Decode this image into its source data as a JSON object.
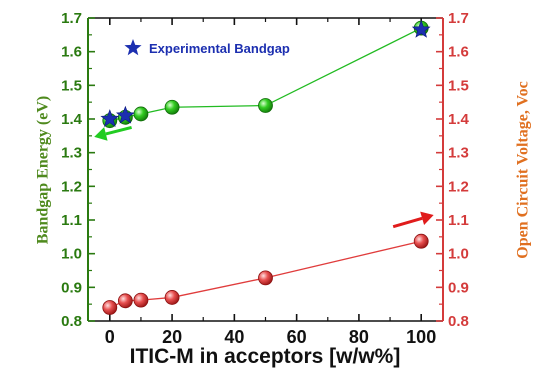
{
  "chart_data": {
    "type": "scatter",
    "xlabel": "ITIC-M in acceptors [w/w%]",
    "ylabel_left": "Bandgap Energy (eV)",
    "ylabel_right": "Open Circuit Voltage, Voc",
    "x_ticks": [
      "0",
      "20",
      "40",
      "60",
      "80",
      "100"
    ],
    "y_ticks_left": [
      "0.8",
      "0.9",
      "1.0",
      "1.1",
      "1.2",
      "1.3",
      "1.4",
      "1.5",
      "1.6",
      "1.7"
    ],
    "y_ticks_right": [
      "0.8",
      "0.9",
      "1.0",
      "1.1",
      "1.2",
      "1.3",
      "1.4",
      "1.5",
      "1.6",
      "1.7"
    ],
    "xlim": [
      -7,
      107
    ],
    "ylim": [
      0.8,
      1.7
    ],
    "grid": false,
    "legend": {
      "placement": "top-left",
      "label": "Experimental Bandgap"
    },
    "series": [
      {
        "axis": "left",
        "style": "line+marker",
        "color": "#22bb22",
        "points": [
          {
            "x": 0,
            "y": 1.395
          },
          {
            "x": 5,
            "y": 1.405
          },
          {
            "x": 10,
            "y": 1.415
          },
          {
            "x": 20,
            "y": 1.435
          },
          {
            "x": 50,
            "y": 1.44
          },
          {
            "x": 100,
            "y": 1.67
          }
        ]
      },
      {
        "axis": "right",
        "style": "line+marker",
        "color": "#e03c3c",
        "points": [
          {
            "x": 0,
            "y": 0.84
          },
          {
            "x": 5,
            "y": 0.86
          },
          {
            "x": 10,
            "y": 0.862
          },
          {
            "x": 20,
            "y": 0.87
          },
          {
            "x": 50,
            "y": 0.928
          },
          {
            "x": 100,
            "y": 1.037
          }
        ]
      },
      {
        "name": "Experimental Bandgap",
        "axis": "left",
        "style": "star",
        "color": "#1c2fb0",
        "points": [
          {
            "x": 0,
            "y": 1.4
          },
          {
            "x": 5,
            "y": 1.41
          },
          {
            "x": 100,
            "y": 1.665
          }
        ]
      }
    ],
    "annotations": [
      {
        "kind": "arrow",
        "color": "#22cc22",
        "direction": "left",
        "from": {
          "x": 7,
          "y": 1.375
        },
        "to": {
          "x": -5,
          "y": 1.347
        }
      },
      {
        "kind": "arrow",
        "color": "#e01c1c",
        "direction": "right",
        "from": {
          "x": 91,
          "y": 1.08
        },
        "to": {
          "x": 104,
          "y": 1.115
        }
      }
    ]
  }
}
